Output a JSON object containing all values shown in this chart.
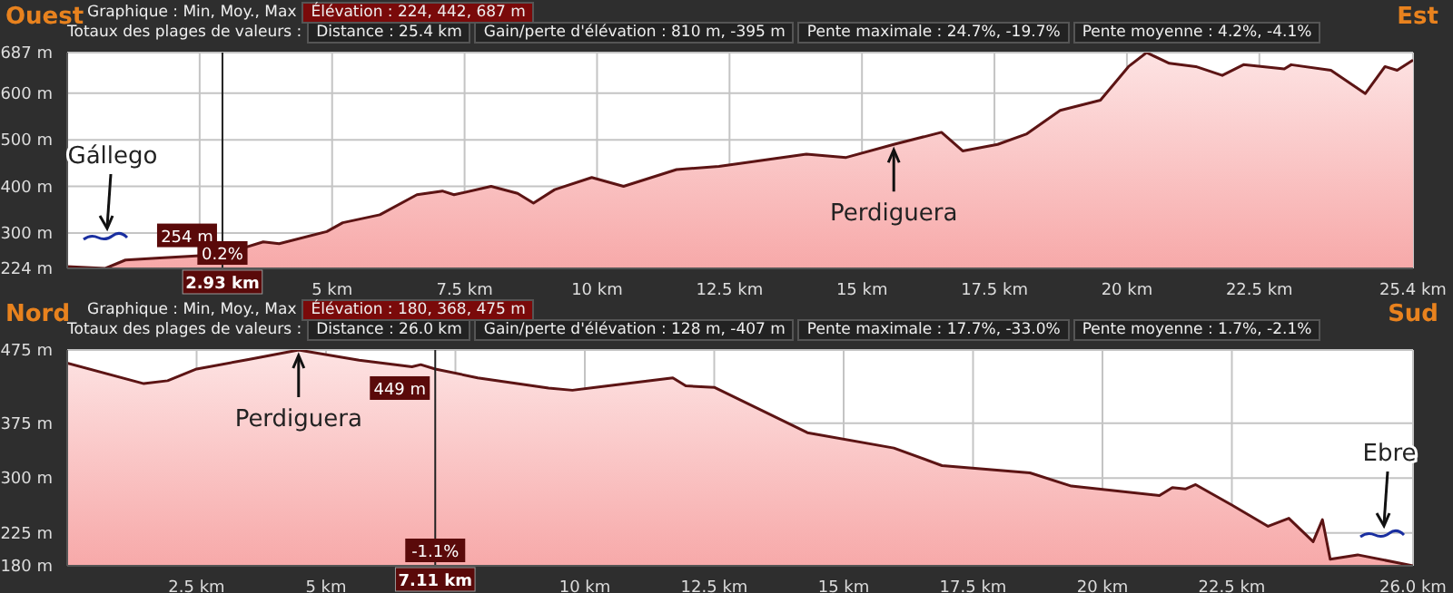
{
  "chart_data": [
    {
      "type": "area",
      "color": "#5c1414",
      "grid": true,
      "annotations": [
        "Ouest",
        "Est",
        "Graphique : Min, Moy., Max",
        "Élévation : 224, 442, 687 m",
        "Totaux des plages de valeurs :",
        "Distance : 25.4 km",
        "Gain/perte d'élévation : 810 m, -395 m",
        "Pente maximale : 24.7%, -19.7%",
        "Pente moyenne : 4.2%, -4.1%",
        {
          "text": "254 m",
          "x": 2.93,
          "y": 254
        },
        {
          "text": "0.2%",
          "x": 2.93
        },
        "Gállego",
        {
          "text": "Perdiguera",
          "x": 15.6,
          "y": 490
        }
      ],
      "ref_lines": [
        {
          "axis": "x",
          "value": 2.93,
          "label": "2.93 km",
          "color": "#222222"
        }
      ],
      "xlim": [
        0,
        25.4
      ],
      "xticks": [
        {
          "value": 2.5,
          "label": null
        },
        {
          "value": 5,
          "label": "5 km"
        },
        {
          "value": 7.5,
          "label": "7.5 km"
        },
        {
          "value": 10,
          "label": "10 km"
        },
        {
          "value": 12.5,
          "label": "12.5 km"
        },
        {
          "value": 15,
          "label": "15 km"
        },
        {
          "value": 17.5,
          "label": "17.5 km"
        },
        {
          "value": 20,
          "label": "20 km"
        },
        {
          "value": 22.5,
          "label": "22.5 km"
        },
        {
          "value": 25.4,
          "label": "25.4 km"
        }
      ],
      "ylim": [
        224,
        687
      ],
      "yticks": [
        {
          "value": 224,
          "label": "224 m"
        },
        {
          "value": 300,
          "label": "300 m"
        },
        {
          "value": 400,
          "label": "400 m"
        },
        {
          "value": 500,
          "label": "500 m"
        },
        {
          "value": 600,
          "label": "600 m"
        },
        {
          "value": 687,
          "label": "687 m"
        }
      ],
      "x": [
        0,
        0.72,
        1.1,
        1.67,
        2.5,
        2.93,
        3.7,
        4.0,
        4.9,
        5.2,
        5.9,
        6.6,
        7.08,
        7.3,
        8.0,
        8.5,
        8.8,
        9.2,
        9.9,
        10.5,
        11.5,
        12.3,
        13.95,
        14.7,
        15.6,
        16.5,
        16.9,
        17.56,
        18.1,
        18.74,
        19.5,
        20.03,
        20.37,
        20.8,
        21.3,
        21.8,
        22.2,
        22.97,
        23.1,
        23.85,
        24.5,
        24.87,
        25.1,
        25.4
      ],
      "values": [
        228,
        224,
        242,
        246,
        251,
        254,
        281,
        277,
        303,
        322,
        339,
        382,
        390,
        382,
        400,
        385,
        364,
        393,
        419,
        400,
        436,
        443,
        469,
        462,
        490,
        516,
        476,
        490,
        512,
        563,
        585,
        657,
        687,
        664,
        657,
        638,
        661,
        652,
        661,
        649,
        599,
        657,
        649,
        671
      ]
    },
    {
      "type": "area",
      "color": "#5c1414",
      "grid": true,
      "annotations": [
        "Nord",
        "Sud",
        "Graphique : Min, Moy., Max",
        "Élévation : 180, 368, 475 m",
        "Totaux des plages de valeurs :",
        "Distance : 26.0 km",
        "Gain/perte d'élévation : 128 m, -407 m",
        "Pente maximale : 17.7%, -33.0%",
        "Pente moyenne : 1.7%, -2.1%",
        {
          "text": "449 m",
          "x": 7.11,
          "y": 449
        },
        {
          "text": "-1.1%",
          "x": 7.11
        },
        {
          "text": "Perdiguera",
          "x": 4.47,
          "y": 475
        },
        "Ebre"
      ],
      "ref_lines": [
        {
          "axis": "x",
          "value": 7.11,
          "label": "7.11 km",
          "color": "#222222"
        }
      ],
      "xlim": [
        0,
        26
      ],
      "xticks": [
        {
          "value": 2.5,
          "label": "2.5 km"
        },
        {
          "value": 5,
          "label": "5 km"
        },
        {
          "value": 7.5,
          "label": null
        },
        {
          "value": 10,
          "label": "10 km"
        },
        {
          "value": 12.5,
          "label": "12.5 km"
        },
        {
          "value": 15,
          "label": "15 km"
        },
        {
          "value": 17.5,
          "label": "17.5 km"
        },
        {
          "value": 20,
          "label": "20 km"
        },
        {
          "value": 22.5,
          "label": "22.5 km"
        },
        {
          "value": 26,
          "label": "26.0 km"
        }
      ],
      "ylim": [
        180,
        475
      ],
      "yticks": [
        {
          "value": 180,
          "label": "180 m"
        },
        {
          "value": 225,
          "label": "225 m"
        },
        {
          "value": 300,
          "label": "300 m"
        },
        {
          "value": 375,
          "label": "375 m"
        },
        {
          "value": 475,
          "label": "475 m"
        }
      ],
      "x": [
        0,
        1.48,
        1.94,
        2.5,
        3.5,
        4.47,
        5.64,
        6.66,
        6.83,
        7.11,
        7.93,
        9.3,
        9.76,
        10.2,
        11.7,
        11.95,
        12.5,
        14.3,
        15.97,
        16.9,
        18.6,
        19.4,
        21.1,
        21.35,
        21.6,
        21.8,
        22.5,
        23.2,
        23.6,
        24.07,
        24.25,
        24.4,
        24.93,
        26.0
      ],
      "values": [
        457,
        429,
        433,
        449,
        462,
        475,
        461,
        452,
        455,
        449,
        437,
        423,
        420,
        424,
        437,
        426,
        424,
        362,
        341,
        317,
        307,
        289,
        276,
        287,
        285,
        291,
        263,
        234,
        245,
        213,
        243,
        189,
        195,
        180
      ]
    }
  ]
}
